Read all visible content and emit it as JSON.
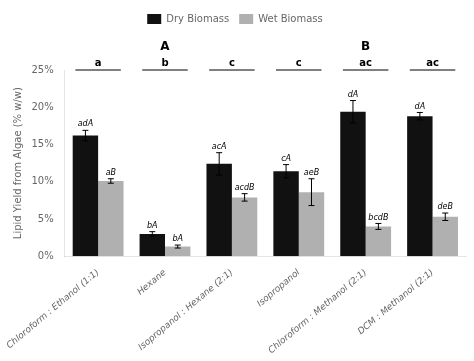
{
  "chart_data": {
    "type": "bar",
    "categories": [
      "Chloroform : Ethanol (1:1)",
      "Hexane",
      "Isopropanol : Hexane (2:1)",
      "Isopropanol",
      "Chloroform : Methanol (2:1)",
      "DCM : Methanol (2:1)"
    ],
    "series": [
      {
        "name": "Dry Biomass",
        "color": "#111111",
        "values": [
          16.2,
          3.0,
          12.4,
          11.4,
          19.4,
          18.8
        ],
        "errors": [
          0.7,
          0.3,
          1.5,
          0.9,
          1.5,
          0.5
        ],
        "bar_labels": [
          "adA",
          "bA",
          "acA",
          "cA",
          "dA",
          "dA"
        ]
      },
      {
        "name": "Wet Biomass",
        "color": "#b0b0b0",
        "values": [
          10.1,
          1.3,
          7.9,
          8.6,
          4.0,
          5.3
        ],
        "errors": [
          0.3,
          0.2,
          0.5,
          1.8,
          0.4,
          0.5
        ],
        "bar_labels": [
          "aB",
          "bA",
          "acdB",
          "aeB",
          "bcdB",
          "deB"
        ]
      }
    ],
    "ylabel": "Lipid Yield from Algae (% w/w)",
    "ylim": [
      0,
      25
    ],
    "yticks": [
      {
        "value": 0,
        "label": "0%"
      },
      {
        "value": 5,
        "label": "5%"
      },
      {
        "value": 10,
        "label": "10%"
      },
      {
        "value": 15,
        "label": "15%"
      },
      {
        "value": 20,
        "label": "20%"
      },
      {
        "value": 25,
        "label": "25%"
      }
    ],
    "group_letters": [
      "a",
      "b",
      "c",
      "c",
      "ac",
      "ac"
    ],
    "annotations": [
      {
        "text": "A",
        "categories": [
          "Chloroform : Ethanol (1:1)",
          "Hexane",
          "Isopropanol : Hexane (2:1)"
        ]
      },
      {
        "text": "B",
        "categories": [
          "Isopropanol",
          "Chloroform : Methanol (2:1)",
          "DCM : Methanol (2:1)"
        ]
      }
    ],
    "grid": false,
    "legend": "top"
  }
}
